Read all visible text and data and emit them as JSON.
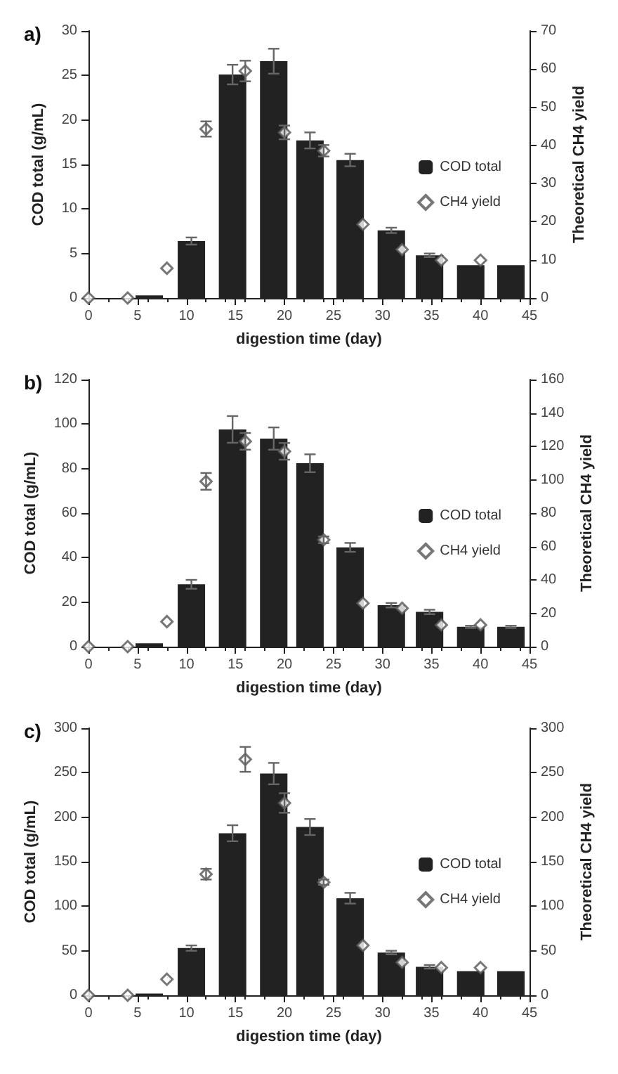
{
  "chart_data": [
    {
      "type": "bar",
      "title": "a)",
      "xlabel": "digestion time (day)",
      "ylabel": "COD total (g/mL)",
      "y2label": "Theoretical CH4 yield",
      "xlim": [
        0,
        45
      ],
      "xticks": [
        0,
        5,
        10,
        15,
        20,
        25,
        30,
        35,
        40,
        45
      ],
      "ylim": [
        0,
        30
      ],
      "yticks": [
        0,
        5,
        10,
        15,
        20,
        25,
        30
      ],
      "y2lim": [
        0,
        70
      ],
      "y2ticks": [
        0,
        10,
        20,
        30,
        40,
        50,
        60,
        70
      ],
      "legend": "right",
      "grid": false,
      "series": [
        {
          "name": "COD total",
          "color": "#222222",
          "x": [
            6.2,
            10.5,
            14.7,
            18.9,
            22.6,
            26.7,
            30.9,
            34.8,
            39,
            43.1
          ],
          "values": [
            0.3,
            6.4,
            25.1,
            26.6,
            17.7,
            15.5,
            7.6,
            4.8,
            3.7,
            3.7
          ],
          "errors": [
            null,
            0.4,
            1.1,
            1.4,
            0.9,
            0.7,
            0.3,
            0.2,
            null,
            null
          ]
        },
        {
          "name": "CH4 yield",
          "type": "scatter",
          "axis": "y2",
          "marker": "diamond",
          "color": "#555555",
          "x": [
            0,
            4,
            8,
            12,
            16,
            20,
            24,
            28,
            32,
            36,
            40
          ],
          "values": [
            0,
            0,
            7.8,
            44.3,
            59.5,
            43.4,
            38.6,
            19.3,
            12.7,
            9.9,
            9.9
          ],
          "errors": [
            null,
            null,
            null,
            2,
            2.7,
            1.8,
            1.5,
            null,
            null,
            null,
            null
          ]
        }
      ]
    },
    {
      "type": "bar",
      "title": "b)",
      "xlabel": "digestion time (day)",
      "ylabel": "COD total (g/mL)",
      "y2label": "Theoretical CH4 yield",
      "xlim": [
        0,
        45
      ],
      "xticks": [
        0,
        5,
        10,
        15,
        20,
        25,
        30,
        35,
        40,
        45
      ],
      "ylim": [
        0,
        120
      ],
      "yticks": [
        0,
        20,
        40,
        60,
        80,
        100,
        120
      ],
      "y2lim": [
        0,
        160
      ],
      "y2ticks": [
        0,
        20,
        40,
        60,
        80,
        100,
        120,
        140,
        160
      ],
      "legend": "right",
      "grid": false,
      "series": [
        {
          "name": "COD total",
          "color": "#222222",
          "x": [
            6.2,
            10.5,
            14.7,
            18.9,
            22.6,
            26.7,
            30.9,
            34.8,
            39,
            43.1
          ],
          "values": [
            1.5,
            28,
            97.6,
            93.5,
            82.4,
            44.6,
            18.6,
            15.6,
            8.9,
            8.9
          ],
          "errors": [
            null,
            2,
            6,
            5,
            4,
            2,
            1,
            1,
            0.5,
            0.5
          ]
        },
        {
          "name": "CH4 yield",
          "type": "scatter",
          "axis": "y2",
          "marker": "diamond",
          "color": "#555555",
          "x": [
            0,
            4,
            8,
            12,
            16,
            20,
            24,
            28,
            32,
            36,
            40
          ],
          "values": [
            0,
            0,
            15,
            99,
            123,
            117,
            64,
            26,
            23,
            13,
            13
          ],
          "errors": [
            null,
            null,
            null,
            5,
            5,
            5,
            2,
            null,
            null,
            null,
            null
          ]
        }
      ]
    },
    {
      "type": "bar",
      "title": "c)",
      "xlabel": "digestion time (day)",
      "ylabel": "COD total (g/mL)",
      "y2label": "Theoretical CH4 yield",
      "xlim": [
        0,
        45
      ],
      "xticks": [
        0,
        5,
        10,
        15,
        20,
        25,
        30,
        35,
        40,
        45
      ],
      "ylim": [
        0,
        300
      ],
      "yticks": [
        0,
        50,
        100,
        150,
        200,
        250,
        300
      ],
      "y2lim": [
        0,
        300
      ],
      "y2ticks": [
        0,
        50,
        100,
        150,
        200,
        250,
        300
      ],
      "legend": "right",
      "grid": false,
      "series": [
        {
          "name": "COD total",
          "color": "#222222",
          "x": [
            6.2,
            10.5,
            14.7,
            18.9,
            22.6,
            26.7,
            30.9,
            34.8,
            39,
            43.1
          ],
          "values": [
            2,
            53,
            182,
            249,
            189,
            109,
            48,
            32,
            27,
            27
          ],
          "errors": [
            null,
            3,
            9,
            12,
            9,
            6,
            2,
            2,
            null,
            null
          ]
        },
        {
          "name": "CH4 yield",
          "type": "scatter",
          "axis": "y2",
          "marker": "diamond",
          "color": "#555555",
          "x": [
            0,
            4,
            8,
            12,
            16,
            20,
            24,
            28,
            32,
            36,
            40
          ],
          "values": [
            0,
            0,
            18,
            136,
            265,
            216,
            127,
            56,
            37,
            31,
            31
          ],
          "errors": [
            null,
            null,
            null,
            6,
            14,
            11,
            3,
            null,
            null,
            null,
            null
          ]
        }
      ]
    }
  ]
}
